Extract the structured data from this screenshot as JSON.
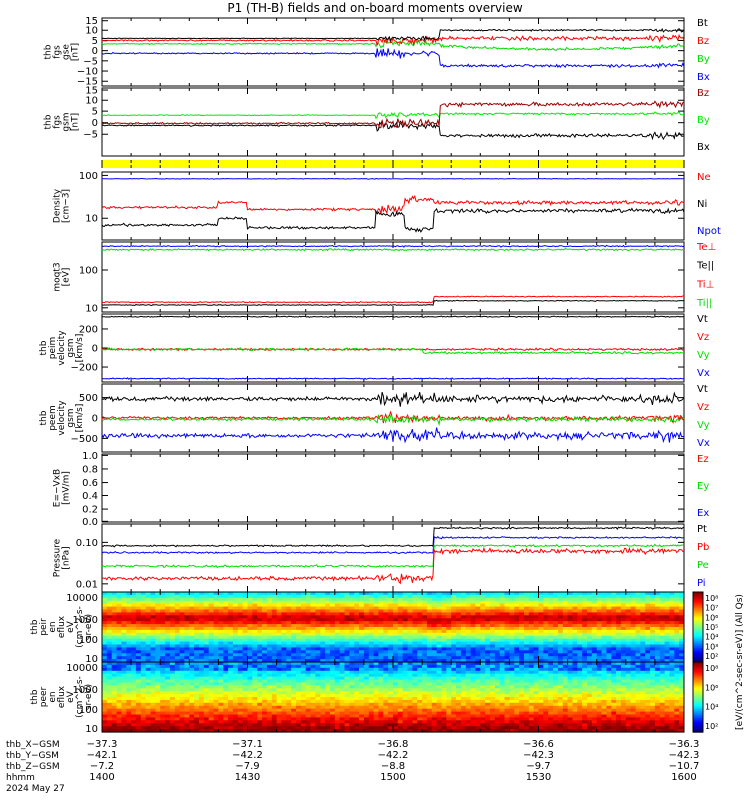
{
  "title": "P1 (TH-B) fields and on-board moments overview",
  "colors": {
    "black": "#000000",
    "red": "#ff0000",
    "green": "#00dd00",
    "blue": "#0000ff",
    "darkred": "#990000",
    "lime": "#00ee00",
    "yellow": "#ffff00"
  },
  "chart_data": [
    {
      "id": "fgs-gse",
      "type": "line",
      "ylabel": [
        "thb",
        "fgs",
        "gse",
        "[nT]"
      ],
      "ylim": [
        -15,
        15
      ],
      "yticks": [
        "15",
        "10",
        "5",
        "0",
        "−5",
        "−10",
        "−15"
      ],
      "series": [
        {
          "name": "Bt",
          "color": "black"
        },
        {
          "name": "Bz",
          "color": "red"
        },
        {
          "name": "By",
          "color": "green"
        },
        {
          "name": "Bx",
          "color": "blue"
        }
      ]
    },
    {
      "id": "fgs-gsm",
      "type": "line",
      "ylabel": [
        "thb",
        "fgs",
        "gsm",
        "[nT]"
      ],
      "ylim": [
        -10,
        15
      ],
      "yticks": [
        "15",
        "10",
        "5",
        "0",
        "−5"
      ],
      "series": [
        {
          "name": "Bz",
          "color": "darkred"
        },
        {
          "name": "By",
          "color": "lime"
        },
        {
          "name": "Bx",
          "color": "black"
        }
      ]
    },
    {
      "id": "mode-bar",
      "type": "bar",
      "color": "yellow"
    },
    {
      "id": "density",
      "type": "line",
      "ylabel": [
        "Density",
        "[cm−3]"
      ],
      "scale": "log",
      "ylim": [
        1,
        100
      ],
      "yticks": [
        "100",
        "10"
      ],
      "series": [
        {
          "name": "Ne",
          "color": "red"
        },
        {
          "name": "Ni",
          "color": "black"
        },
        {
          "name": "Npot",
          "color": "blue"
        }
      ]
    },
    {
      "id": "temperature",
      "type": "line",
      "ylabel": [
        "moqt3",
        "[eV]"
      ],
      "scale": "log",
      "yticks": [
        "100",
        "10"
      ],
      "series": [
        {
          "name": "Te⊥",
          "color": "red"
        },
        {
          "name": "Te||",
          "color": "black"
        },
        {
          "name": "Ti⊥",
          "color": "red"
        },
        {
          "name": "Ti||",
          "color": "green"
        }
      ]
    },
    {
      "id": "peim-velocity",
      "type": "line",
      "ylabel": [
        "thb",
        "peim",
        "velocity",
        "gsm",
        "[km/s]"
      ],
      "ylim": [
        -300,
        300
      ],
      "yticks": [
        "200",
        "0",
        "−200"
      ],
      "series": [
        {
          "name": "Vt",
          "color": "black"
        },
        {
          "name": "Vz",
          "color": "red"
        },
        {
          "name": "Vy",
          "color": "green"
        },
        {
          "name": "Vx",
          "color": "blue"
        }
      ]
    },
    {
      "id": "peem-velocity",
      "type": "line",
      "ylabel": [
        "thb",
        "peem",
        "velocity",
        "gsm",
        "[km/s]"
      ],
      "ylim": [
        -700,
        700
      ],
      "yticks": [
        "500",
        "0",
        "−500"
      ],
      "series": [
        {
          "name": "Vt",
          "color": "black"
        },
        {
          "name": "Vz",
          "color": "red"
        },
        {
          "name": "Vy",
          "color": "green"
        },
        {
          "name": "Vx",
          "color": "blue"
        }
      ]
    },
    {
      "id": "efield",
      "type": "line",
      "ylabel": [
        "E=−VxB",
        "[mV/m]"
      ],
      "ylim": [
        0,
        1
      ],
      "yticks": [
        "1.0",
        "0.8",
        "0.6",
        "0.4",
        "0.2",
        "0.0"
      ],
      "series": [
        {
          "name": "Ez",
          "color": "red"
        },
        {
          "name": "Ey",
          "color": "green"
        },
        {
          "name": "Ex",
          "color": "blue"
        }
      ]
    },
    {
      "id": "pressure",
      "type": "line",
      "ylabel": [
        "Pressure",
        "[nPa]"
      ],
      "scale": "log",
      "yticks": [
        "0.10",
        "0.01"
      ],
      "series": [
        {
          "name": "Pt",
          "color": "black"
        },
        {
          "name": "Pb",
          "color": "red"
        },
        {
          "name": "Pe",
          "color": "green"
        },
        {
          "name": "Pi",
          "color": "blue"
        }
      ]
    },
    {
      "id": "peir-spec",
      "type": "heatmap",
      "ylabel": [
        "thb",
        "peir",
        "en",
        "eflux",
        "eV",
        "(cm^2-s-",
        "sr-eV)"
      ],
      "scale": "log",
      "yticks": [
        "10000",
        "1000",
        "100",
        "10"
      ],
      "colorbar_ticks": [
        "10⁸",
        "10⁷",
        "10⁶",
        "10⁵",
        "10⁴",
        "10³",
        "10²"
      ],
      "colorbar_label": "[eV/(cm^2-sec-sr-eV)] (All Qs)"
    },
    {
      "id": "peer-spec",
      "type": "heatmap",
      "ylabel": [
        "thb",
        "peer",
        "en",
        "eflux",
        "eV",
        "(cm^2-s-",
        "sr-eV)"
      ],
      "scale": "log",
      "yticks": [
        "10000",
        "1000",
        "100",
        "10"
      ],
      "colorbar_ticks": [
        "10⁸",
        "10⁶",
        "10⁴",
        "10²"
      ],
      "colorbar_label": "[eV/(cm^2-sec-sr-eV)]"
    }
  ],
  "x_axis": {
    "rows": [
      {
        "label": "thb_X−GSM",
        "values": [
          "−37.3",
          "−37.1",
          "−36.8",
          "−36.6",
          "−36.3"
        ]
      },
      {
        "label": "thb_Y−GSM",
        "values": [
          "−42.1",
          "−42.2",
          "−42.2",
          "−42.3",
          "−42.3"
        ]
      },
      {
        "label": "thb_Z−GSM",
        "values": [
          "−7.2",
          "−7.9",
          "−8.8",
          "−9.7",
          "−10.7"
        ]
      },
      {
        "label": "hhmm",
        "values": [
          "1400",
          "1430",
          "1500",
          "1530",
          "1600"
        ]
      }
    ],
    "date": "2024 May 27"
  }
}
